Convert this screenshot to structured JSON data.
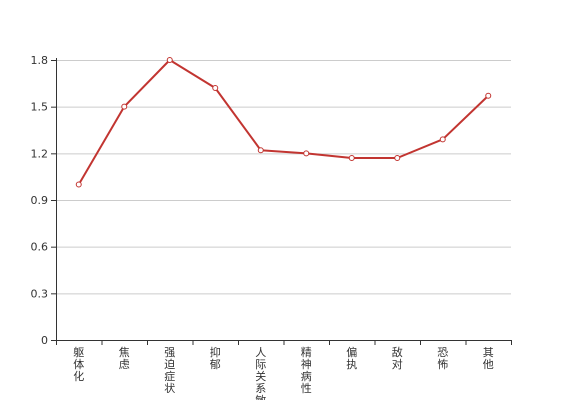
{
  "chart_data": {
    "type": "line",
    "categories": [
      "躯体化",
      "焦虑",
      "强迫症状",
      "抑郁",
      "人际关系敏感",
      "精神病性",
      "偏执",
      "敌对",
      "恐怖",
      "其他"
    ],
    "values": [
      1.0,
      1.5,
      1.8,
      1.62,
      1.22,
      1.2,
      1.17,
      1.17,
      1.29,
      1.57
    ],
    "ylim": [
      0,
      1.8
    ],
    "yticks": [
      "0",
      "0.3",
      "0.6",
      "0.9",
      "1.2",
      "1.5",
      "1.8"
    ],
    "grid": true,
    "line_color": "#c23531",
    "grid_color": "#cccccc",
    "axis_color": "#333333"
  }
}
